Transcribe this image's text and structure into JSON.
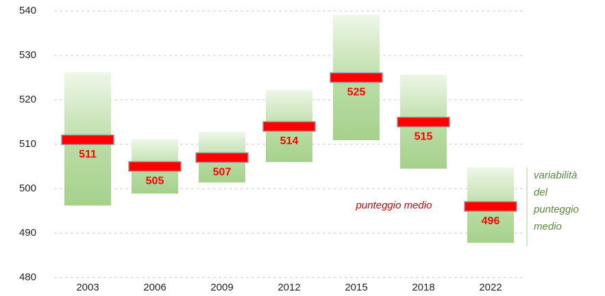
{
  "chart_data": {
    "type": "range",
    "categories": [
      "2003",
      "2006",
      "2009",
      "2012",
      "2015",
      "2018",
      "2022"
    ],
    "low": [
      496.2,
      498.9,
      501.4,
      506.0,
      510.9,
      504.5,
      487.8
    ],
    "high": [
      526.2,
      511.1,
      512.8,
      522.2,
      539.1,
      525.7,
      504.8
    ],
    "mean": [
      511,
      505,
      507,
      514,
      525,
      515,
      496
    ],
    "range_color": "#a6d18c",
    "mean_color": "#ff0000",
    "ylim": [
      480,
      540
    ],
    "yticks": [
      480,
      490,
      500,
      510,
      520,
      530,
      540
    ],
    "grid": true,
    "annotations": [
      "punteggio medio",
      "variabilità del punteggio medio"
    ]
  }
}
